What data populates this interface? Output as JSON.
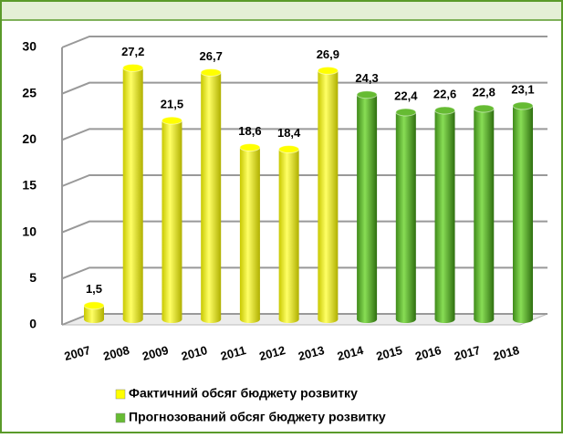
{
  "chart_data": {
    "type": "bar",
    "categories": [
      "2007",
      "2008",
      "2009",
      "2010",
      "2011",
      "2012",
      "2013",
      "2014",
      "2015",
      "2016",
      "2017",
      "2018"
    ],
    "series": [
      {
        "name": "Фактичний обсяг бюджету розвитку",
        "color": "#ffff00",
        "values": [
          1.5,
          27.2,
          21.5,
          26.7,
          18.6,
          18.4,
          26.9,
          null,
          null,
          null,
          null,
          null
        ],
        "value_labels": [
          "1,5",
          "27,2",
          "21,5",
          "26,7",
          "18,6",
          "18,4",
          "26,9",
          null,
          null,
          null,
          null,
          null
        ]
      },
      {
        "name": "Прогнозований обсяг бюджету розвитку",
        "color": "#66bb33",
        "values": [
          null,
          null,
          null,
          null,
          null,
          null,
          null,
          24.3,
          22.4,
          22.6,
          22.8,
          23.1
        ],
        "value_labels": [
          null,
          null,
          null,
          null,
          null,
          null,
          null,
          "24,3",
          "22,4",
          "22,6",
          "22,8",
          "23,1"
        ]
      }
    ],
    "ylim": [
      0,
      30
    ],
    "yticks": [
      0,
      5,
      10,
      15,
      20,
      25,
      30
    ],
    "grid": true,
    "legend": "bottom"
  }
}
